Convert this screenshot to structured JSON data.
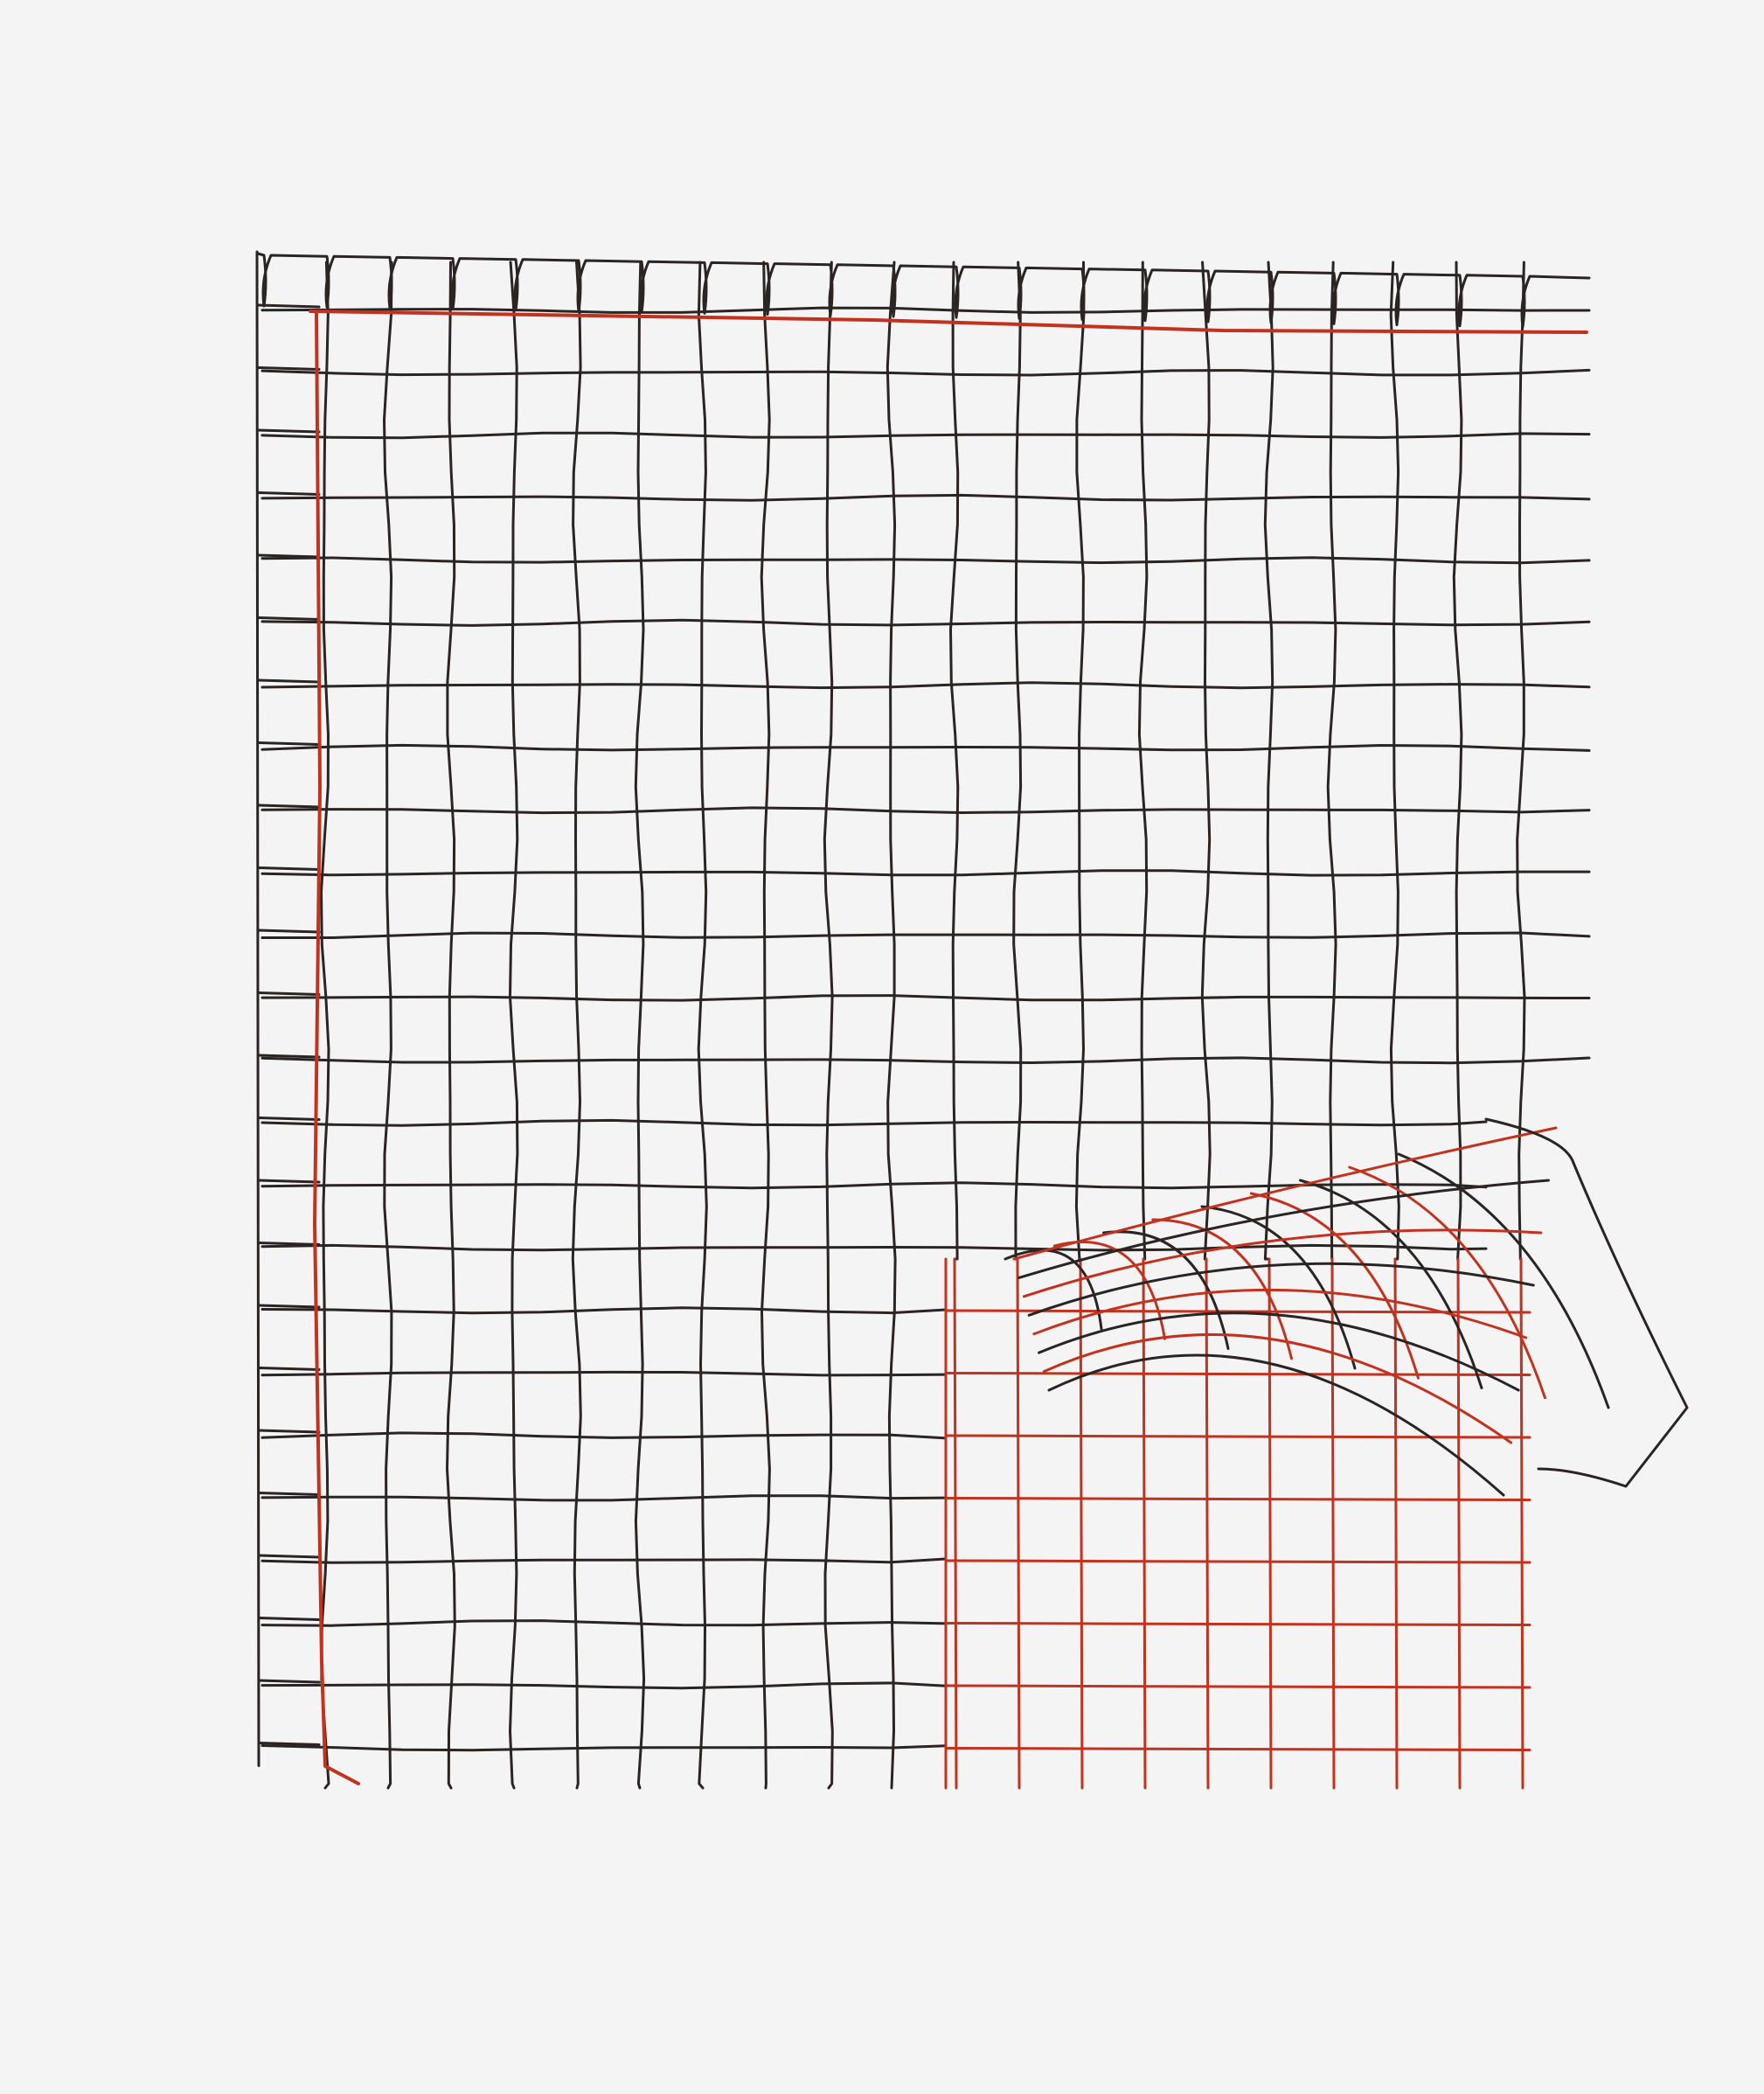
{
  "scene": {
    "subject": "wire-grid-sculpture-with-peeled-corner",
    "colors": {
      "background": "#f4f4f5",
      "wire_dark": "#2a2422",
      "wire_red": "#c2331f"
    }
  }
}
